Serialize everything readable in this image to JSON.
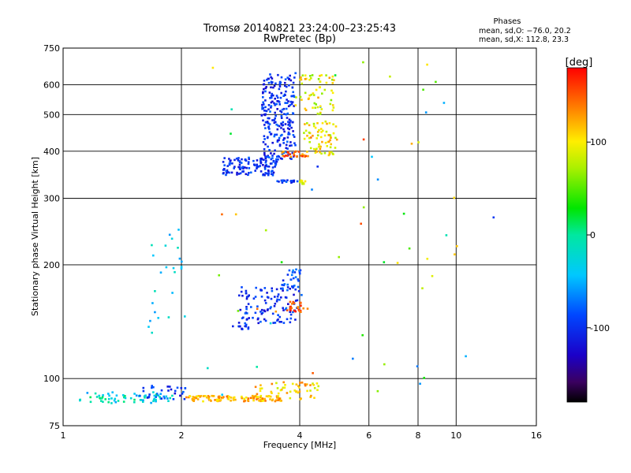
{
  "chart_data": {
    "type": "scatter",
    "title": "Tromsø 20140821 23:24:00–23:25:43",
    "subtitle": "RwPretec (Bp)",
    "xlabel": "Frequency [MHz]",
    "ylabel": "Stationary phase Virtual Height [km]",
    "x_scale": "log",
    "y_scale": "log",
    "xlim": [
      1,
      16
    ],
    "ylim": [
      75,
      750
    ],
    "xticks": [
      "1",
      "2",
      "4",
      "6",
      "8",
      "10",
      "16"
    ],
    "yticks": [
      "75",
      "100",
      "200",
      "300",
      "400",
      "500",
      "600",
      "750"
    ],
    "grid": true,
    "colorbar": {
      "label": "[deg]",
      "range": [
        -180,
        180
      ],
      "ticks": [
        "100",
        "0",
        "-100"
      ],
      "colormap": "rainbow"
    },
    "info": {
      "heading": "Phases",
      "line1": "mean, sd,O: −76.0, 20.2",
      "line2": "mean, sd,X: 112.8, 23.3"
    },
    "series": [
      {
        "name": "O",
        "clusters": [
          {
            "x": [
              1.1,
              1.9
            ],
            "y": [
              86,
              92
            ],
            "phase": [
              -65,
              15
            ],
            "n": 70
          },
          {
            "x": [
              1.55,
              2.05
            ],
            "y": [
              88,
              96
            ],
            "phase": [
              -125,
              -70
            ],
            "n": 30
          },
          {
            "x": [
              2.55,
              3.5
            ],
            "y": [
              345,
              385
            ],
            "phase": [
              -125,
              -75
            ],
            "n": 120
          },
          {
            "x": [
              3.2,
              3.9
            ],
            "y": [
              380,
              640
            ],
            "phase": [
              -125,
              -75
            ],
            "n": 240
          },
          {
            "x": [
              3.5,
              3.95
            ],
            "y": [
              330,
              335
            ],
            "phase": [
              -120,
              -70
            ],
            "n": 20
          },
          {
            "x": [
              2.8,
              3.95
            ],
            "y": [
              140,
              175
            ],
            "phase": [
              -125,
              -75
            ],
            "n": 110
          },
          {
            "x": [
              3.6,
              4.05
            ],
            "y": [
              170,
              195
            ],
            "phase": [
              -110,
              -60
            ],
            "n": 30
          },
          {
            "x": [
              2.7,
              3.0
            ],
            "y": [
              135,
              140
            ],
            "phase": [
              -120,
              -80
            ],
            "n": 12
          },
          {
            "x": [
              1.65,
              2.05
            ],
            "y": [
              125,
              250
            ],
            "phase": [
              -60,
              -10
            ],
            "n": 25
          },
          {
            "x": [
              2.3,
              12.5
            ],
            "y": [
              90,
              700
            ],
            "phase": [
              -100,
              160
            ],
            "n": 60
          }
        ]
      },
      {
        "name": "X",
        "clusters": [
          {
            "x": [
              2.05,
              3.6
            ],
            "y": [
              87,
              90
            ],
            "phase": [
              95,
              145
            ],
            "n": 120
          },
          {
            "x": [
              3.05,
              4.5
            ],
            "y": [
              88,
              98
            ],
            "phase": [
              80,
              140
            ],
            "n": 50
          },
          {
            "x": [
              3.9,
              4.9
            ],
            "y": [
              500,
              640
            ],
            "phase": [
              60,
              130
            ],
            "n": 60
          },
          {
            "x": [
              4.1,
              5.0
            ],
            "y": [
              390,
              480
            ],
            "phase": [
              70,
              130
            ],
            "n": 70
          },
          {
            "x": [
              3.6,
              4.2
            ],
            "y": [
              385,
              400
            ],
            "phase": [
              120,
              170
            ],
            "n": 25
          },
          {
            "x": [
              3.7,
              4.25
            ],
            "y": [
              150,
              160
            ],
            "phase": [
              130,
              175
            ],
            "n": 25
          },
          {
            "x": [
              4.0,
              4.15
            ],
            "y": [
              325,
              335
            ],
            "phase": [
              70,
              110
            ],
            "n": 10
          }
        ]
      }
    ]
  }
}
